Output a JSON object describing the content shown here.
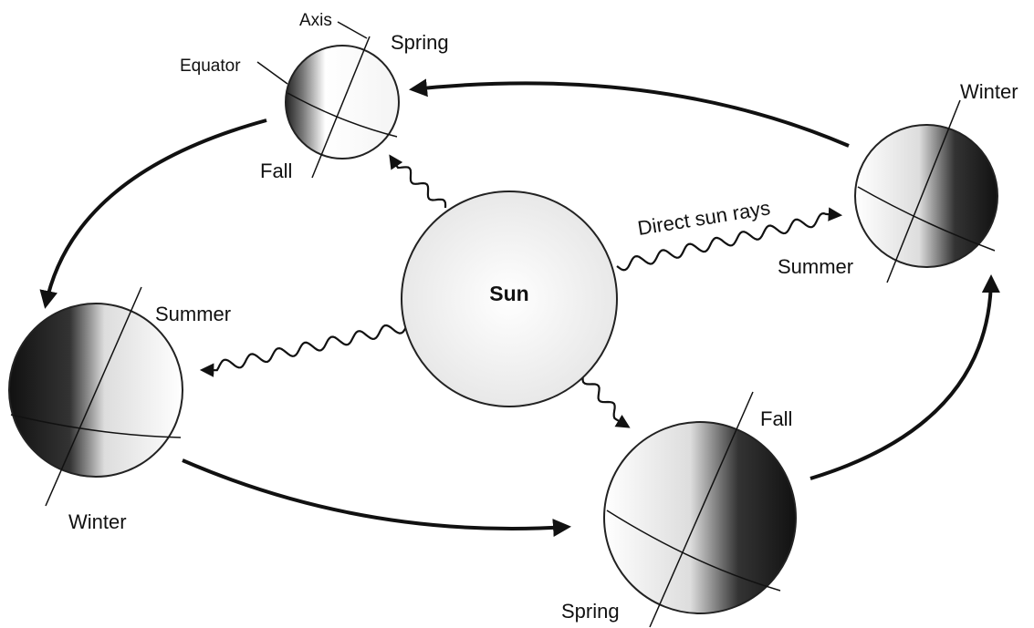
{
  "sun": {
    "label": "Sun"
  },
  "rays_label": "Direct sun rays",
  "callouts": {
    "axis": "Axis",
    "equator": "Equator"
  },
  "earths": [
    {
      "top": "Spring",
      "bottom": "Fall"
    },
    {
      "top": "Winter",
      "bottom": "Summer"
    },
    {
      "top": "Summer",
      "bottom": "Winter"
    },
    {
      "top": "Fall",
      "bottom": "Spring"
    }
  ]
}
